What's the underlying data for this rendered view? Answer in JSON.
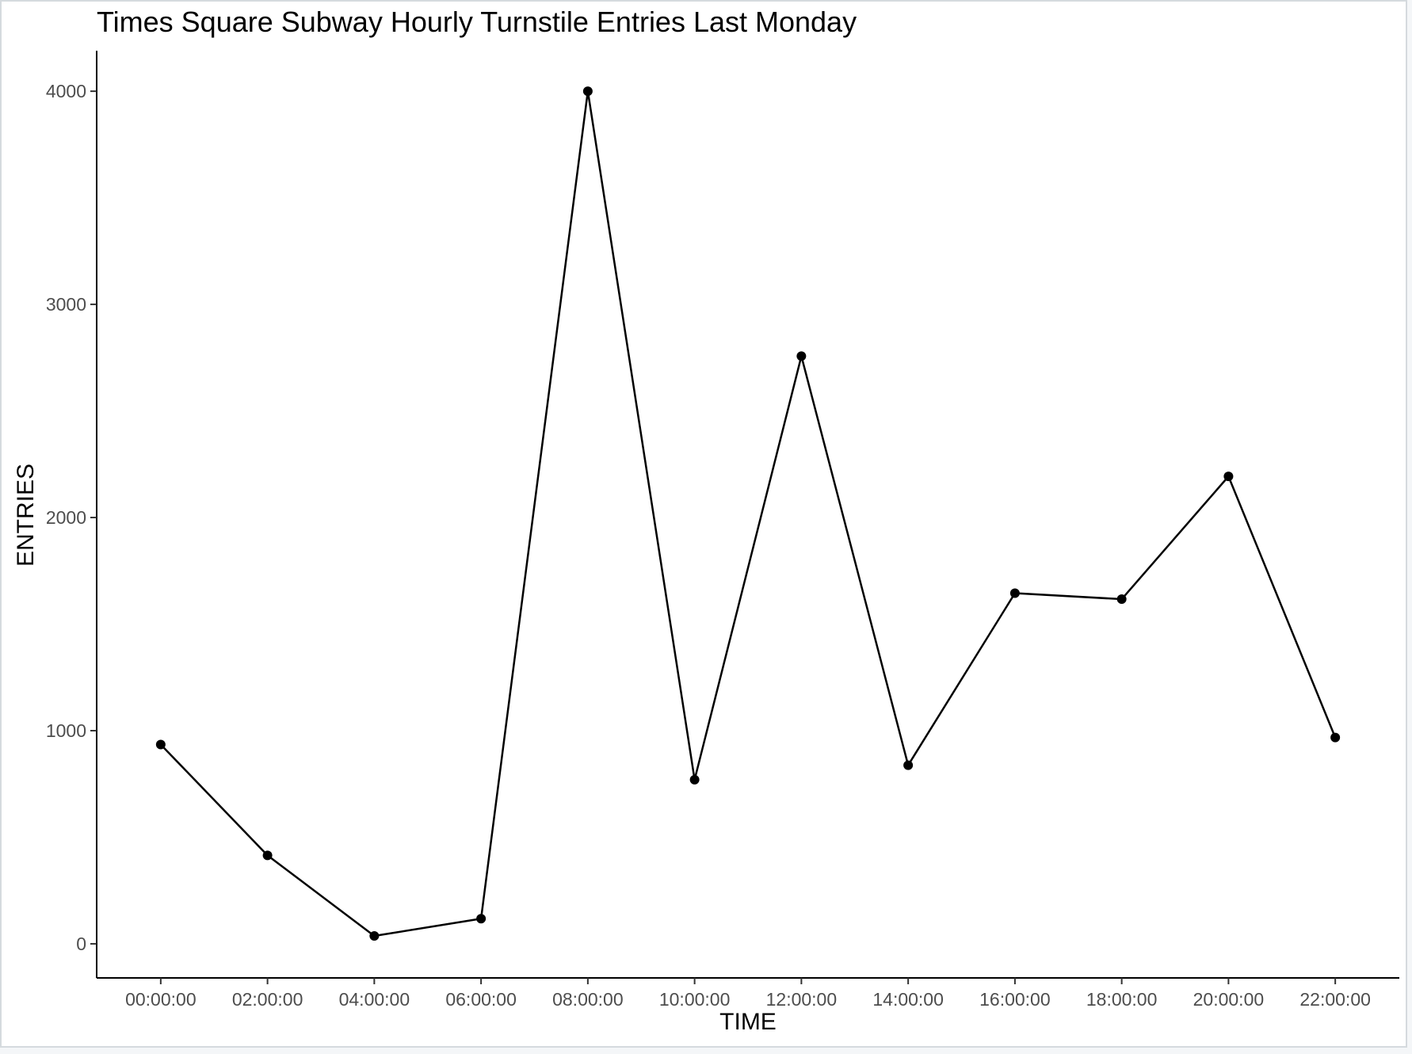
{
  "chart_data": {
    "type": "line",
    "title": "Times Square Subway Hourly Turnstile Entries Last Monday",
    "xlabel": "TIME",
    "ylabel": "ENTRIES",
    "categories": [
      "00:00:00",
      "02:00:00",
      "04:00:00",
      "06:00:00",
      "08:00:00",
      "10:00:00",
      "12:00:00",
      "14:00:00",
      "16:00:00",
      "18:00:00",
      "20:00:00",
      "22:00:00"
    ],
    "values": [
      935,
      415,
      37,
      118,
      4000,
      770,
      2757,
      838,
      1645,
      1617,
      2193,
      968
    ],
    "ylim": [
      -160,
      4190
    ],
    "yticks": [
      0,
      1000,
      2000,
      3000,
      4000
    ],
    "grid": false,
    "legend": "none",
    "colors": {
      "line": "#000000",
      "point": "#000000",
      "axis": "#000000"
    }
  }
}
